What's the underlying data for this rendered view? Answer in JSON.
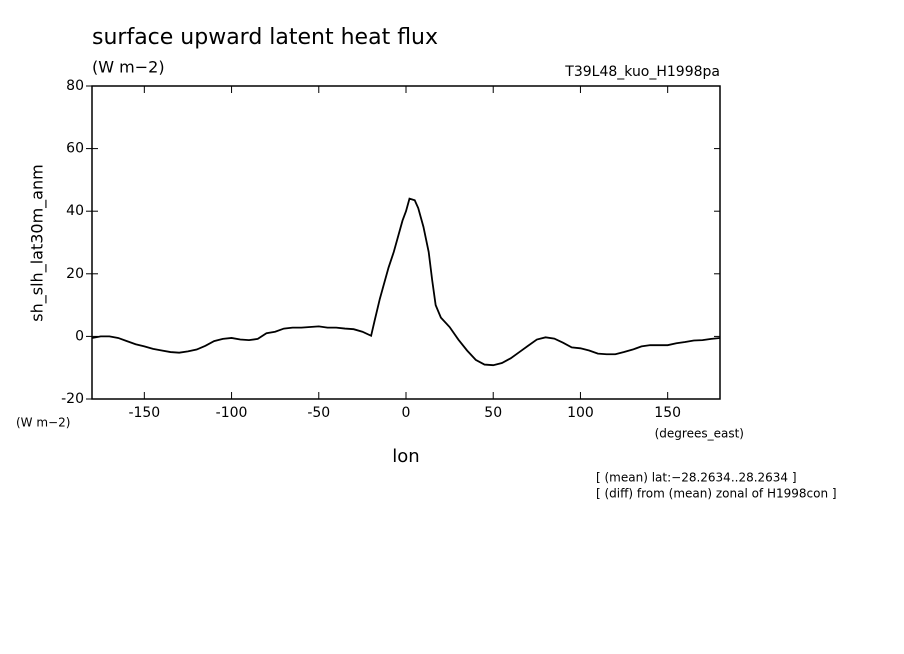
{
  "chart_data": {
    "type": "line",
    "title": "surface upward latent heat flux",
    "subtitle": "(W m−2)",
    "annotation": "T39L48_kuo_H1998pa",
    "ylabel": "sh_slh_lat30m_anm",
    "yunits": "(W m−2)",
    "xlabel": "lon",
    "xunits": "(degrees_east)",
    "notes": [
      "[ (mean) lat:−28.2634..28.2634 ]",
      "[ (diff) from (mean) zonal of H1998con ]"
    ],
    "xlim": [
      -180,
      180
    ],
    "ylim": [
      -20,
      80
    ],
    "xticks": [
      -150,
      -100,
      -50,
      0,
      50,
      100,
      150
    ],
    "yticks": [
      -20,
      0,
      20,
      40,
      60,
      80
    ],
    "series": [
      {
        "name": "sh_slh_lat30m_anm",
        "color": "#000000",
        "x": [
          -180,
          -175,
          -170,
          -165,
          -160,
          -155,
          -150,
          -145,
          -140,
          -135,
          -130,
          -125,
          -120,
          -115,
          -110,
          -105,
          -100,
          -95,
          -90,
          -85,
          -80,
          -75,
          -70,
          -65,
          -60,
          -55,
          -50,
          -45,
          -40,
          -35,
          -30,
          -25,
          -20,
          -18,
          -15,
          -10,
          -7,
          -5,
          -2,
          0,
          2,
          5,
          7,
          10,
          13,
          15,
          17,
          20,
          25,
          30,
          35,
          40,
          45,
          50,
          55,
          60,
          65,
          70,
          75,
          80,
          85,
          90,
          95,
          100,
          105,
          110,
          115,
          120,
          125,
          130,
          135,
          140,
          145,
          150,
          155,
          160,
          165,
          170,
          175,
          180
        ],
        "values": [
          -0.5,
          0,
          0,
          -0.5,
          -1.5,
          -2.5,
          -3.2,
          -4,
          -4.5,
          -5,
          -5.2,
          -4.8,
          -4.2,
          -3,
          -1.5,
          -0.8,
          -0.5,
          -1,
          -1.2,
          -0.8,
          1,
          1.5,
          2.5,
          2.8,
          2.8,
          3,
          3.2,
          2.8,
          2.8,
          2.5,
          2.3,
          1.5,
          0.2,
          5,
          12,
          22,
          27,
          31,
          37,
          40,
          44,
          43.5,
          41,
          35,
          27,
          18,
          10,
          6,
          3,
          -1,
          -4.5,
          -7.5,
          -9,
          -9.2,
          -8.5,
          -7,
          -5,
          -3,
          -1,
          -0.3,
          -0.7,
          -2,
          -3.5,
          -3.8,
          -4.5,
          -5.5,
          -5.7,
          -5.7,
          -5,
          -4.2,
          -3.2,
          -2.8,
          -2.8,
          -2.8,
          -2.2,
          -1.8,
          -1.3,
          -1.2,
          -0.8,
          -0.5
        ]
      }
    ]
  }
}
